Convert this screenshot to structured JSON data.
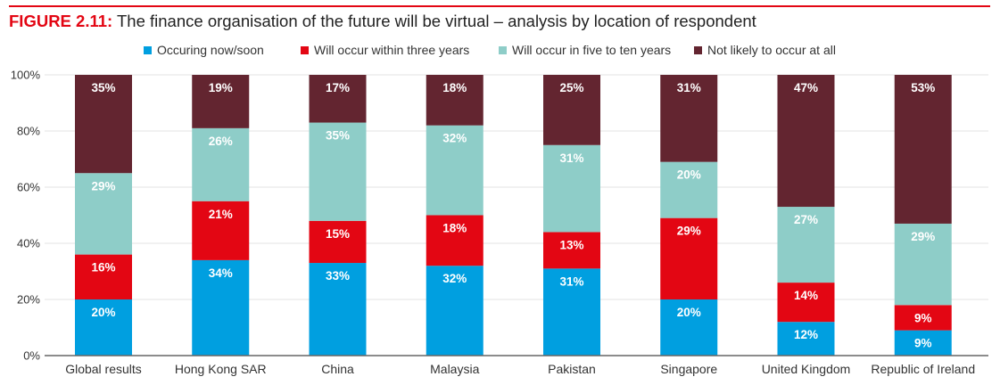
{
  "figure": {
    "number_label": "FIGURE 2.11:",
    "title_text": "The finance organisation of the future will be virtual – analysis by location of respondent"
  },
  "chart_data": {
    "type": "bar",
    "stacked": true,
    "title": "FIGURE 2.11: The finance organisation of the future will be virtual – analysis by location of respondent",
    "xlabel": "",
    "ylabel": "",
    "ylim": [
      0,
      100
    ],
    "yticks": [
      0,
      20,
      40,
      60,
      80,
      100
    ],
    "ytick_labels": [
      "0%",
      "20%",
      "40%",
      "60%",
      "80%",
      "100%"
    ],
    "grid": true,
    "legend_position": "top-center",
    "categories": [
      "Global results",
      "Hong Kong SAR",
      "China",
      "Malaysia",
      "Pakistan",
      "Singapore",
      "United Kingdom",
      "Republic of Ireland"
    ],
    "series": [
      {
        "name": "Occuring now/soon",
        "color": "#009fe0",
        "values": [
          20,
          34,
          33,
          32,
          31,
          20,
          12,
          9
        ]
      },
      {
        "name": "Will occur within three years",
        "color": "#e30613",
        "values": [
          16,
          21,
          15,
          18,
          13,
          29,
          14,
          9
        ]
      },
      {
        "name": "Will occur in five to ten years",
        "color": "#8ecdc8",
        "values": [
          29,
          26,
          35,
          32,
          31,
          20,
          27,
          29
        ]
      },
      {
        "name": "Not likely to occur at all",
        "color": "#632530",
        "values": [
          35,
          19,
          17,
          18,
          25,
          31,
          47,
          53
        ]
      }
    ],
    "value_suffix": "%"
  }
}
